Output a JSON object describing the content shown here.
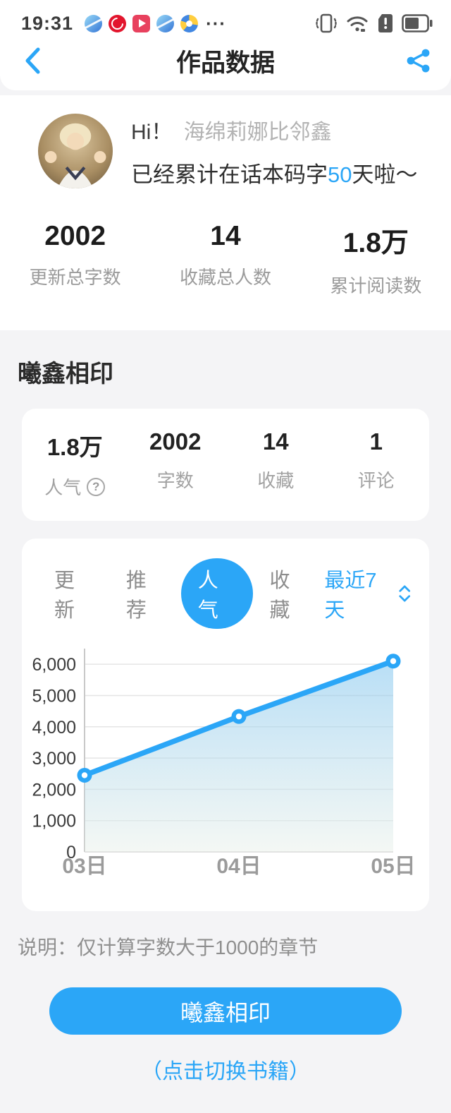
{
  "status_bar": {
    "time": "19:31",
    "more": "···"
  },
  "header": {
    "title": "作品数据"
  },
  "profile": {
    "greeting": "Hi！",
    "nickname": "海绵莉娜比邻鑫",
    "subtitle_prefix": "已经累计在话本码字",
    "subtitle_days": "50",
    "subtitle_suffix": "天啦～"
  },
  "overview_stats": [
    {
      "value": "2002",
      "label": "更新总字数"
    },
    {
      "value": "14",
      "label": "收藏总人数"
    },
    {
      "value": "1.8万",
      "label": "累计阅读数"
    }
  ],
  "book_section": {
    "title": "曦鑫相印",
    "stats": [
      {
        "value": "1.8万",
        "label": "人气",
        "help": "?"
      },
      {
        "value": "2002",
        "label": "字数"
      },
      {
        "value": "14",
        "label": "收藏"
      },
      {
        "value": "1",
        "label": "评论"
      }
    ],
    "tabs": [
      {
        "label": "更新",
        "active": false
      },
      {
        "label": "推荐",
        "active": false
      },
      {
        "label": "人气",
        "active": true
      },
      {
        "label": "收藏",
        "active": false
      }
    ],
    "period": "最近7天",
    "note": "说明：仅计算字数大于1000的章节",
    "button_label": "曦鑫相印",
    "switch_hint": "（点击切换书籍）"
  },
  "chart_data": {
    "type": "area",
    "title": "人气 最近7天",
    "x": [
      "03日",
      "04日",
      "05日"
    ],
    "series": [
      {
        "name": "人气",
        "values": [
          2450,
          4330,
          6100
        ]
      }
    ],
    "ylim": [
      0,
      6500
    ],
    "yticks": [
      0,
      1000,
      2000,
      3000,
      4000,
      5000,
      6000
    ],
    "grid": true,
    "legend": "none",
    "line_color": "#2BA6F7",
    "area_top_color": "#7FC4EE",
    "area_bottom_color": "#E9F0E9"
  },
  "colors": {
    "accent": "#2BA6F7"
  }
}
